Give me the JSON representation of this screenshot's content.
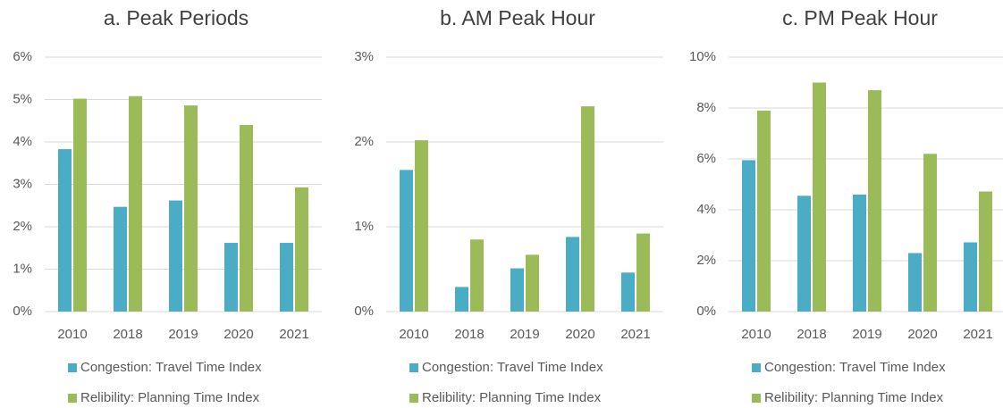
{
  "chart_data": [
    {
      "type": "bar",
      "title": "a. Peak Periods",
      "categories": [
        "2010",
        "2018",
        "2019",
        "2020",
        "2021"
      ],
      "series": [
        {
          "name": "Congestion: Travel Time Index",
          "color": "#4bacc6",
          "values": [
            3.83,
            2.47,
            2.62,
            1.62,
            1.62
          ]
        },
        {
          "name": "Relibility: Planning Time Index",
          "color": "#9bbb59",
          "values": [
            5.02,
            5.08,
            4.86,
            4.4,
            2.93
          ]
        }
      ],
      "ylim": [
        0,
        6
      ],
      "yticks": [
        {
          "value": 0,
          "label": "0%"
        },
        {
          "value": 1,
          "label": "1%"
        },
        {
          "value": 2,
          "label": "2%"
        },
        {
          "value": 3,
          "label": "3%"
        },
        {
          "value": 4,
          "label": "4%"
        },
        {
          "value": 5,
          "label": "5%"
        },
        {
          "value": 6,
          "label": "6%"
        }
      ],
      "grid": true
    },
    {
      "type": "bar",
      "title": "b. AM Peak Hour",
      "categories": [
        "2010",
        "2018",
        "2019",
        "2020",
        "2021"
      ],
      "series": [
        {
          "name": "Congestion: Travel Time Index",
          "color": "#4bacc6",
          "values": [
            1.67,
            0.29,
            0.51,
            0.88,
            0.46
          ]
        },
        {
          "name": "Relibility: Planning Time Index",
          "color": "#9bbb59",
          "values": [
            2.02,
            0.85,
            0.67,
            2.42,
            0.92
          ]
        }
      ],
      "ylim": [
        0,
        3
      ],
      "yticks": [
        {
          "value": 0,
          "label": "0%"
        },
        {
          "value": 1,
          "label": "1%"
        },
        {
          "value": 2,
          "label": "2%"
        },
        {
          "value": 3,
          "label": "3%"
        }
      ],
      "grid": true
    },
    {
      "type": "bar",
      "title": "c. PM Peak Hour",
      "categories": [
        "2010",
        "2018",
        "2019",
        "2020",
        "2021"
      ],
      "series": [
        {
          "name": "Congestion: Travel Time Index",
          "color": "#4bacc6",
          "values": [
            5.95,
            4.55,
            4.6,
            2.3,
            2.72
          ]
        },
        {
          "name": "Relibility: Planning Time Index",
          "color": "#9bbb59",
          "values": [
            7.9,
            9.0,
            8.7,
            6.2,
            4.72
          ]
        }
      ],
      "ylim": [
        0,
        10
      ],
      "yticks": [
        {
          "value": 0,
          "label": "0%"
        },
        {
          "value": 2,
          "label": "2%"
        },
        {
          "value": 4,
          "label": "4%"
        },
        {
          "value": 6,
          "label": "6%"
        },
        {
          "value": 8,
          "label": "8%"
        },
        {
          "value": 10,
          "label": "10%"
        }
      ],
      "grid": true
    }
  ]
}
